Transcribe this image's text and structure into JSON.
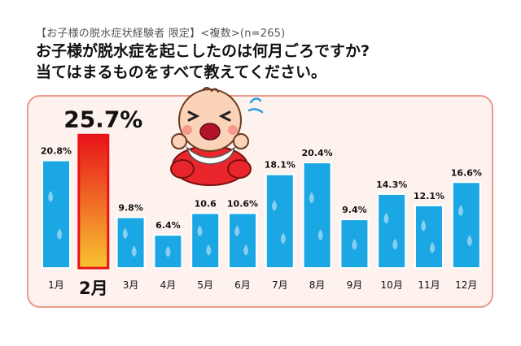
{
  "header": {
    "subtitle": "【お子様の脱水症状経験者 限定】<複数>(n=265)",
    "question_line1": "お子様が脱水症を起こしたのは何月ごろですか?",
    "question_line2": "当てはまるものをすべて教えてください。"
  },
  "colors": {
    "bar_fill": "#1aa7e4",
    "bar_stroke": "#ffffff",
    "highlight_top": "#e8131a",
    "highlight_bottom": "#f7c431",
    "highlight_border": "#e8131a",
    "panel_bg": "#fdf2ee",
    "panel_border": "#ec9a8c",
    "drop": "#9ad6f3"
  },
  "chart_data": {
    "type": "bar",
    "title": "お子様が脱水症を起こしたのは何月ごろですか?",
    "categories": [
      "1月",
      "2月",
      "3月",
      "4月",
      "5月",
      "6月",
      "7月",
      "8月",
      "9月",
      "10月",
      "11月",
      "12月"
    ],
    "values": [
      20.8,
      25.7,
      9.8,
      6.4,
      10.6,
      10.6,
      18.1,
      20.4,
      9.4,
      14.3,
      12.1,
      16.6
    ],
    "value_labels": [
      "20.8%",
      "25.7%",
      "9.8%",
      "6.4%",
      "10.6",
      "10.6%",
      "18.1%",
      "20.4%",
      "9.4%",
      "14.3%",
      "12.1%",
      "16.6%"
    ],
    "highlight_index": 1,
    "ylim": [
      0,
      27
    ],
    "xlabel": "",
    "ylabel": "",
    "unit": "%"
  }
}
